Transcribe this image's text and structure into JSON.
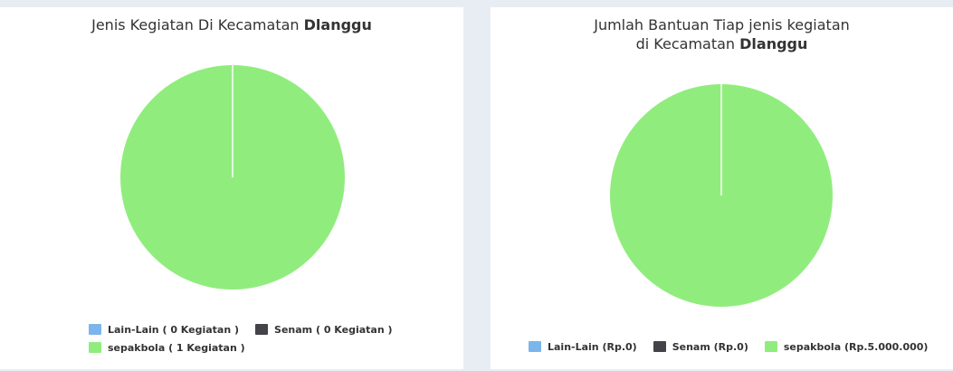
{
  "chart_data": [
    {
      "type": "pie",
      "title_prefix": "Jenis Kegiatan Di Kecamatan",
      "title_bold": "Dlanggu",
      "legend_placement": "bottom",
      "series": [
        {
          "name": "Lain-Lain ( 0 Kegiatan )",
          "value": 0,
          "color": "#7cb5ec"
        },
        {
          "name": "Senam ( 0 Kegiatan )",
          "value": 0,
          "color": "#434348"
        },
        {
          "name": "sepakbola ( 1 Kegiatan )",
          "value": 1,
          "color": "#90ed7d"
        }
      ]
    },
    {
      "type": "pie",
      "title_line1": "Jumlah Bantuan Tiap jenis kegiatan",
      "title_prefix": "di Kecamatan",
      "title_bold": "Dlanggu",
      "legend_placement": "bottom",
      "series": [
        {
          "name": "Lain-Lain (Rp.0)",
          "value": 0,
          "color": "#7cb5ec"
        },
        {
          "name": "Senam (Rp.0)",
          "value": 0,
          "color": "#434348"
        },
        {
          "name": "sepakbola (Rp.5.000.000)",
          "value": 5000000,
          "color": "#90ed7d"
        }
      ]
    }
  ]
}
